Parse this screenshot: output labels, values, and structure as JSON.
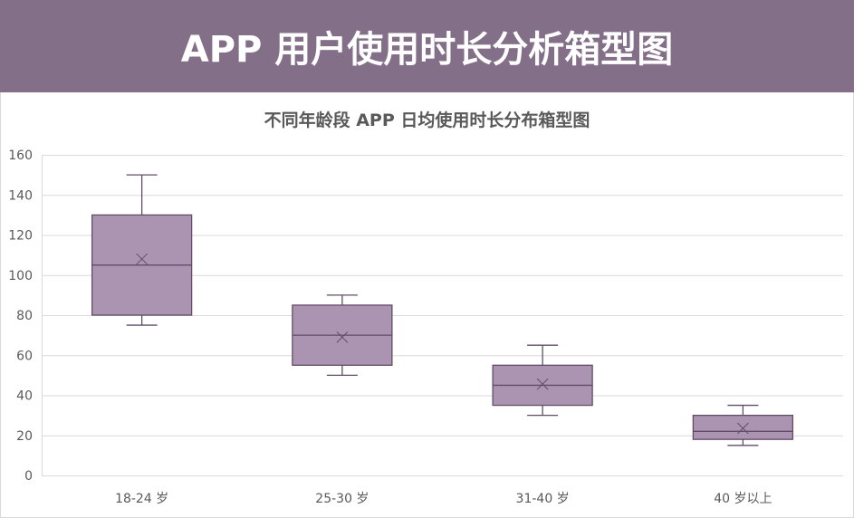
{
  "header": {
    "title": "APP 用户使用时长分析箱型图"
  },
  "colors": {
    "header_bg": "#846f89",
    "box_fill": "#ab94b2",
    "box_stroke": "#614d66",
    "grid": "#d9d9d9",
    "text": "#595959"
  },
  "chart_data": {
    "type": "boxplot",
    "title": "不同年龄段 APP 日均使用时长分布箱型图",
    "xlabel": "",
    "ylabel": "",
    "ylim": [
      0,
      160
    ],
    "yticks": [
      0,
      20,
      40,
      60,
      80,
      100,
      120,
      140,
      160
    ],
    "grid": true,
    "legend": "none",
    "categories": [
      "18-24 岁",
      "25-30 岁",
      "31-40 岁",
      "40 岁以上"
    ],
    "series": [
      {
        "name": "18-24 岁",
        "min": 75,
        "q1": 80,
        "median": 105,
        "q3": 130,
        "max": 150,
        "mean": 108
      },
      {
        "name": "25-30 岁",
        "min": 50,
        "q1": 55,
        "median": 70,
        "q3": 85,
        "max": 90,
        "mean": 69
      },
      {
        "name": "31-40 岁",
        "min": 30,
        "q1": 35,
        "median": 45,
        "q3": 55,
        "max": 65,
        "mean": 45.6
      },
      {
        "name": "40 岁以上",
        "min": 15,
        "q1": 18,
        "median": 22,
        "q3": 30,
        "max": 35,
        "mean": 23.5
      }
    ]
  }
}
